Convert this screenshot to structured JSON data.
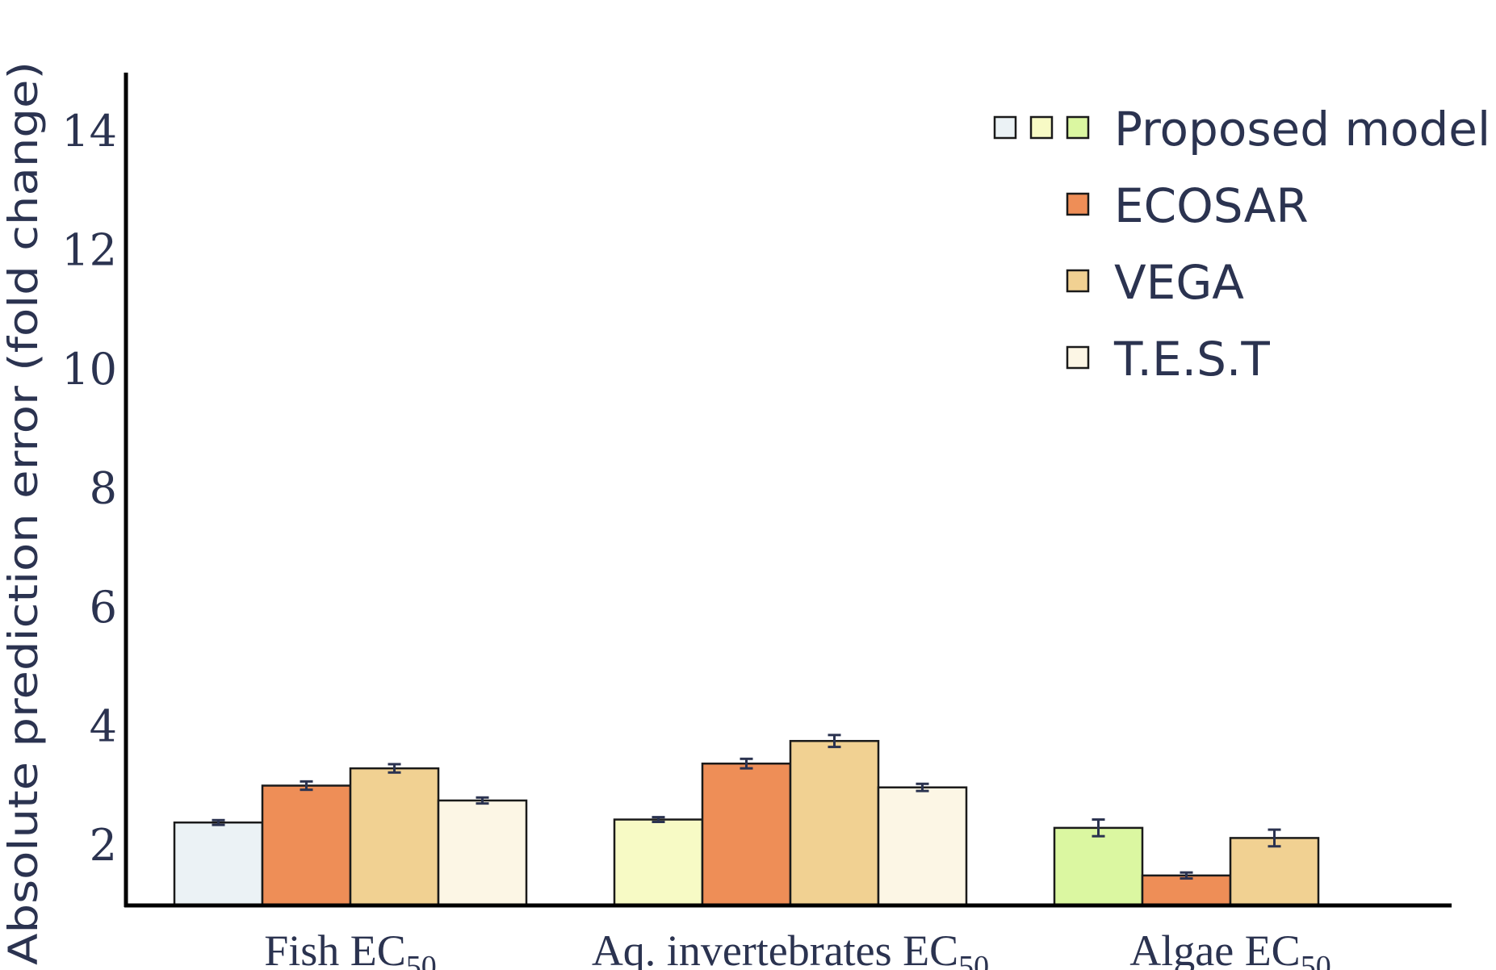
{
  "chart_data": {
    "type": "bar",
    "ylabel": "Absolute prediction error (fold change)",
    "xlabel": "",
    "ylim": [
      0.98,
      15
    ],
    "yticks": [
      2,
      4,
      6,
      8,
      10,
      12,
      14
    ],
    "legend_position": "top-right",
    "groups": [
      {
        "category": "Fish EC",
        "subscript": "50",
        "bars": [
          {
            "series": "Proposed model",
            "value": 2.39,
            "error": 0.04,
            "color": "#ebf2f5"
          },
          {
            "series": "ECOSAR",
            "value": 3.01,
            "error": 0.07,
            "color": "#ee8e57"
          },
          {
            "series": "VEGA",
            "value": 3.3,
            "error": 0.07,
            "color": "#f1d192"
          },
          {
            "series": "T.E.S.T",
            "value": 2.76,
            "error": 0.05,
            "color": "#fcf6e5"
          }
        ]
      },
      {
        "category": "Aq. invertebrates EC",
        "subscript": "50",
        "bars": [
          {
            "series": "Proposed model",
            "value": 2.44,
            "error": 0.04,
            "color": "#f7fac5"
          },
          {
            "series": "ECOSAR",
            "value": 3.38,
            "error": 0.08,
            "color": "#ee8e57"
          },
          {
            "series": "VEGA",
            "value": 3.76,
            "error": 0.1,
            "color": "#f1d192"
          },
          {
            "series": "T.E.S.T",
            "value": 2.98,
            "error": 0.06,
            "color": "#fcf6e5"
          }
        ]
      },
      {
        "category": "Algae EC",
        "subscript": "50",
        "bars": [
          {
            "series": "Proposed model",
            "value": 2.3,
            "error": 0.14,
            "color": "#dbf7a1"
          },
          {
            "series": "ECOSAR",
            "value": 1.5,
            "error": 0.05,
            "color": "#ee8e57"
          },
          {
            "series": "VEGA",
            "value": 2.13,
            "error": 0.14,
            "color": "#f1d192"
          }
        ]
      }
    ],
    "legend": [
      {
        "label": "Proposed model",
        "colors": [
          "#ebf2f5",
          "#f7fac5",
          "#dbf7a1"
        ]
      },
      {
        "label": "ECOSAR",
        "colors": [
          "#ee8e57"
        ]
      },
      {
        "label": "VEGA",
        "colors": [
          "#f1d192"
        ]
      },
      {
        "label": "T.E.S.T",
        "colors": [
          "#fcf6e5"
        ]
      }
    ],
    "axis_color": "#000000",
    "text_color": "#2b3350",
    "errorbar_color": "#2b3350"
  }
}
